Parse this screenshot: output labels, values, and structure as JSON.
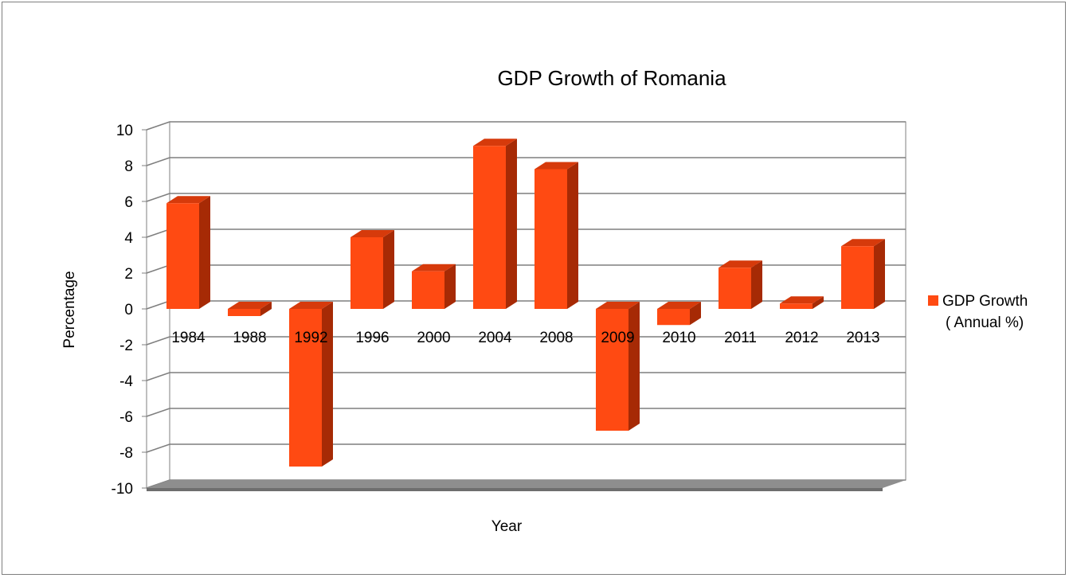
{
  "chart_data": {
    "type": "bar",
    "title": "GDP Growth of Romania",
    "xlabel": "Year",
    "ylabel": "Percentage",
    "categories": [
      "1984",
      "1988",
      "1992",
      "1996",
      "2000",
      "2004",
      "2008",
      "2009",
      "2010",
      "2011",
      "2012",
      "2013"
    ],
    "series": [
      {
        "name": "GDP Growth\n( Annual %)",
        "values": [
          5.9,
          -0.4,
          -8.8,
          4.0,
          2.1,
          9.1,
          7.8,
          -6.8,
          -0.9,
          2.3,
          0.3,
          3.5
        ]
      }
    ],
    "ylim": [
      -10,
      10
    ],
    "yticks": [
      10,
      8,
      6,
      4,
      2,
      0,
      -2,
      -4,
      -6,
      -8,
      -10
    ],
    "grid": true,
    "legend_position": "right",
    "three_d": true,
    "colors": {
      "bar_front": "#ff4a12",
      "bar_side": "#a62a05",
      "bar_top": "#d63a0b",
      "grid": "#7f7f7f",
      "floor": "#8e8e8e",
      "floor_dark": "#6e6e6e"
    }
  }
}
